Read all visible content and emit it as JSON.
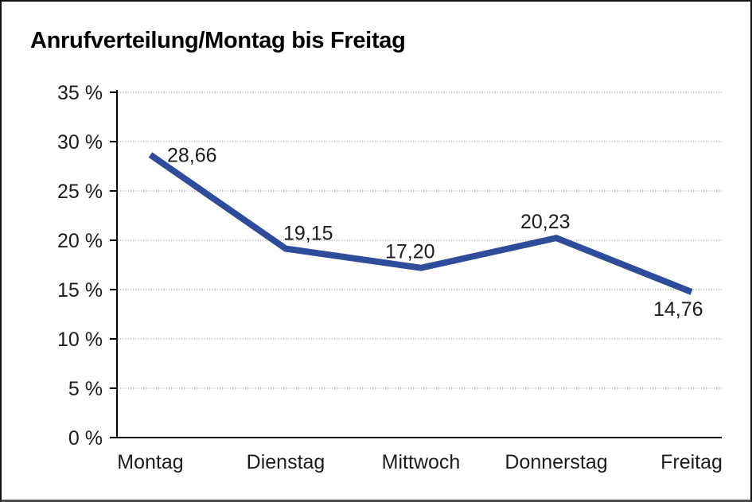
{
  "chart_data": {
    "type": "line",
    "title": "Anrufverteilung/Montag bis Freitag",
    "categories": [
      "Montag",
      "Dienstag",
      "Mittwoch",
      "Donnerstag",
      "Freitag"
    ],
    "values": [
      28.66,
      19.15,
      17.2,
      20.23,
      14.76
    ],
    "value_labels": [
      "28,66",
      "19,15",
      "17,20",
      "20,23",
      "14,76"
    ],
    "y_ticks": [
      {
        "value": 35,
        "label": "35 %"
      },
      {
        "value": 30,
        "label": "30 %"
      },
      {
        "value": 25,
        "label": "25 %"
      },
      {
        "value": 20,
        "label": "20 %"
      },
      {
        "value": 15,
        "label": "15 %"
      },
      {
        "value": 10,
        "label": "10 %"
      },
      {
        "value": 5,
        "label": "5 %"
      },
      {
        "value": 0,
        "label": "0 %"
      }
    ],
    "ylim": [
      0,
      35
    ],
    "xlabel": "",
    "ylabel": "",
    "legend": "none",
    "grid": "horizontal-dotted",
    "series_color": "#2E4C9A",
    "axis_color": "#000000",
    "grid_color": "#7b7b7b"
  }
}
